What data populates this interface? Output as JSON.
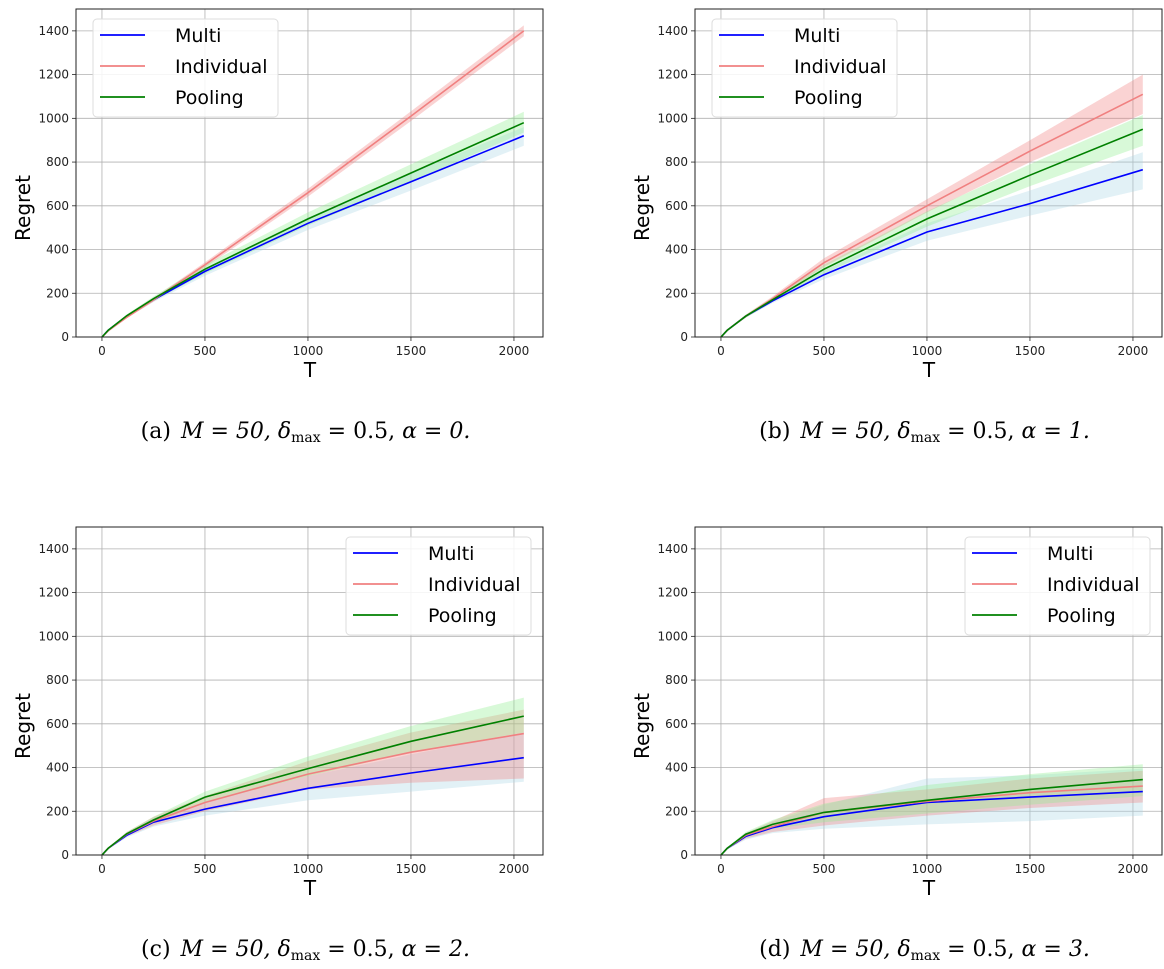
{
  "chart_data": [
    {
      "type": "line",
      "panel": "a",
      "xlabel": "T",
      "ylabel": "Regret",
      "xlim": [
        -126,
        2141
      ],
      "ylim": [
        0,
        1500
      ],
      "xticks": [
        0,
        500,
        1000,
        1500,
        2000
      ],
      "yticks": [
        0,
        200,
        400,
        600,
        800,
        1000,
        1200,
        1400
      ],
      "grid": true,
      "legend": "upper-left",
      "caption": {
        "label": "(a)",
        "M": "M = 50,",
        "delta": "δ",
        "delta_sub": "max",
        "delta_val": " = 0.5,",
        "alpha": "α = 0."
      },
      "x": [
        0,
        30,
        120,
        250,
        500,
        1000,
        1500,
        2048
      ],
      "series": [
        {
          "name": "Multi",
          "values": [
            0,
            30,
            95,
            170,
            300,
            520,
            710,
            920
          ],
          "lower": [
            0,
            28,
            88,
            160,
            280,
            490,
            670,
            875
          ],
          "upper": [
            0,
            32,
            100,
            180,
            315,
            545,
            750,
            960
          ]
        },
        {
          "name": "Individual",
          "values": [
            0,
            28,
            90,
            170,
            330,
            660,
            1010,
            1400
          ],
          "lower": [
            0,
            26,
            85,
            162,
            318,
            642,
            988,
            1375
          ],
          "upper": [
            0,
            30,
            95,
            178,
            342,
            678,
            1032,
            1425
          ]
        },
        {
          "name": "Pooling",
          "values": [
            0,
            30,
            97,
            175,
            310,
            540,
            750,
            980
          ],
          "lower": [
            0,
            28,
            90,
            165,
            290,
            510,
            710,
            935
          ],
          "upper": [
            0,
            32,
            103,
            185,
            330,
            570,
            790,
            1030
          ]
        }
      ]
    },
    {
      "type": "line",
      "panel": "b",
      "xlabel": "T",
      "ylabel": "Regret",
      "xlim": [
        -126,
        2141
      ],
      "ylim": [
        0,
        1500
      ],
      "xticks": [
        0,
        500,
        1000,
        1500,
        2000
      ],
      "yticks": [
        0,
        200,
        400,
        600,
        800,
        1000,
        1200,
        1400
      ],
      "grid": true,
      "legend": "upper-left",
      "caption": {
        "label": "(b)",
        "M": "M = 50,",
        "delta": "δ",
        "delta_sub": "max",
        "delta_val": " = 0.5,",
        "alpha": "α = 1."
      },
      "x": [
        0,
        30,
        120,
        250,
        500,
        1000,
        1500,
        2048
      ],
      "series": [
        {
          "name": "Multi",
          "values": [
            0,
            30,
            95,
            165,
            285,
            480,
            610,
            765
          ],
          "lower": [
            0,
            28,
            88,
            155,
            265,
            440,
            555,
            675
          ],
          "upper": [
            0,
            32,
            100,
            175,
            305,
            520,
            670,
            845
          ]
        },
        {
          "name": "Individual",
          "values": [
            0,
            30,
            95,
            175,
            340,
            600,
            850,
            1110
          ],
          "lower": [
            0,
            28,
            88,
            165,
            320,
            570,
            800,
            1020
          ],
          "upper": [
            0,
            32,
            102,
            185,
            360,
            630,
            900,
            1200
          ]
        },
        {
          "name": "Pooling",
          "values": [
            0,
            30,
            95,
            170,
            310,
            540,
            740,
            950
          ],
          "lower": [
            0,
            28,
            88,
            160,
            290,
            505,
            690,
            875
          ],
          "upper": [
            0,
            32,
            102,
            180,
            330,
            575,
            790,
            1015
          ]
        }
      ]
    },
    {
      "type": "line",
      "panel": "c",
      "xlabel": "T",
      "ylabel": "Regret",
      "xlim": [
        -126,
        2141
      ],
      "ylim": [
        0,
        1500
      ],
      "xticks": [
        0,
        500,
        1000,
        1500,
        2000
      ],
      "yticks": [
        0,
        200,
        400,
        600,
        800,
        1000,
        1200,
        1400
      ],
      "grid": true,
      "legend": "upper-right",
      "caption": {
        "label": "(c)",
        "M": "M = 50,",
        "delta": "δ",
        "delta_sub": "max",
        "delta_val": " = 0.5,",
        "alpha": "α = 2."
      },
      "x": [
        0,
        30,
        120,
        250,
        500,
        1000,
        1500,
        2048
      ],
      "series": [
        {
          "name": "Multi",
          "values": [
            0,
            30,
            90,
            150,
            210,
            305,
            375,
            445
          ],
          "lower": [
            0,
            27,
            80,
            130,
            180,
            250,
            290,
            335
          ],
          "upper": [
            0,
            33,
            100,
            170,
            240,
            360,
            460,
            560
          ]
        },
        {
          "name": "Individual",
          "values": [
            0,
            30,
            95,
            155,
            240,
            370,
            470,
            555
          ],
          "lower": [
            0,
            27,
            85,
            135,
            200,
            300,
            330,
            350
          ],
          "upper": [
            0,
            33,
            105,
            175,
            270,
            430,
            560,
            665
          ]
        },
        {
          "name": "Pooling",
          "values": [
            0,
            30,
            97,
            160,
            265,
            395,
            520,
            635
          ],
          "lower": [
            0,
            27,
            88,
            145,
            240,
            360,
            470,
            560
          ],
          "upper": [
            0,
            33,
            105,
            175,
            290,
            450,
            590,
            720
          ]
        }
      ]
    },
    {
      "type": "line",
      "panel": "d",
      "xlabel": "T",
      "ylabel": "Regret",
      "xlim": [
        -126,
        2141
      ],
      "ylim": [
        0,
        1500
      ],
      "xticks": [
        0,
        500,
        1000,
        1500,
        2000
      ],
      "yticks": [
        0,
        200,
        400,
        600,
        800,
        1000,
        1200,
        1400
      ],
      "grid": true,
      "legend": "upper-right",
      "caption": {
        "label": "(d)",
        "M": "M = 50,",
        "delta": "δ",
        "delta_sub": "max",
        "delta_val": " = 0.5,",
        "alpha": "α = 3."
      },
      "x": [
        0,
        30,
        120,
        250,
        500,
        1000,
        1500,
        2048
      ],
      "series": [
        {
          "name": "Multi",
          "values": [
            0,
            30,
            85,
            125,
            175,
            240,
            265,
            290
          ],
          "lower": [
            0,
            25,
            70,
            100,
            120,
            140,
            155,
            180
          ],
          "upper": [
            0,
            35,
            100,
            150,
            230,
            350,
            365,
            395
          ]
        },
        {
          "name": "Individual",
          "values": [
            0,
            30,
            90,
            130,
            195,
            245,
            285,
            315
          ],
          "lower": [
            0,
            26,
            75,
            105,
            135,
            180,
            215,
            240
          ],
          "upper": [
            0,
            34,
            100,
            155,
            260,
            300,
            350,
            385
          ]
        },
        {
          "name": "Pooling",
          "values": [
            0,
            30,
            95,
            140,
            195,
            250,
            300,
            345
          ],
          "lower": [
            0,
            27,
            80,
            120,
            150,
            190,
            230,
            270
          ],
          "upper": [
            0,
            33,
            105,
            160,
            235,
            320,
            370,
            415
          ]
        }
      ]
    }
  ],
  "colors": {
    "Multi": {
      "line": "#0000ff",
      "band": "#add8e6"
    },
    "Individual": {
      "line": "#f08080",
      "band": "#f08080"
    },
    "Pooling": {
      "line": "#008000",
      "band": "#90ee90"
    }
  }
}
